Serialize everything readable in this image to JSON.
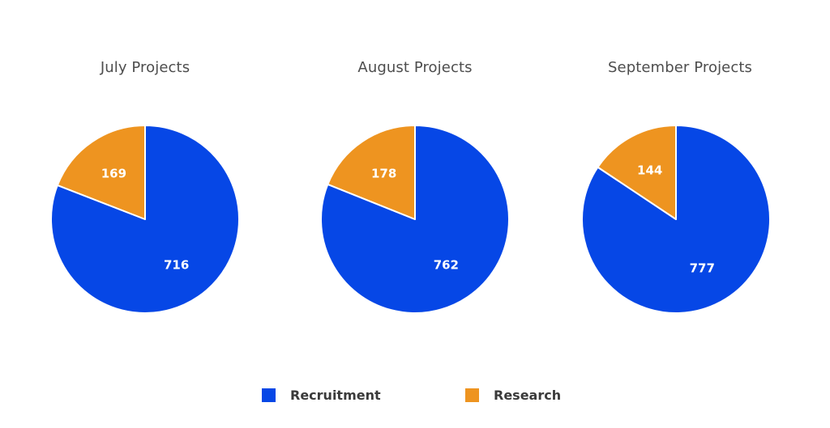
{
  "chart_data": [
    {
      "type": "pie",
      "title": "July Projects",
      "categories": [
        "Recruitment",
        "Research"
      ],
      "values": [
        716,
        169
      ]
    },
    {
      "type": "pie",
      "title": "August Projects",
      "categories": [
        "Recruitment",
        "Research"
      ],
      "values": [
        762,
        178
      ]
    },
    {
      "type": "pie",
      "title": "September Projects",
      "categories": [
        "Recruitment",
        "Research"
      ],
      "values": [
        777,
        144
      ]
    }
  ],
  "colors": {
    "Recruitment": "#0647e6",
    "Research": "#ee9420"
  },
  "legend": {
    "position": "bottom-center",
    "items": [
      {
        "label": "Recruitment",
        "color": "#0647e6"
      },
      {
        "label": "Research",
        "color": "#ee9420"
      }
    ]
  }
}
